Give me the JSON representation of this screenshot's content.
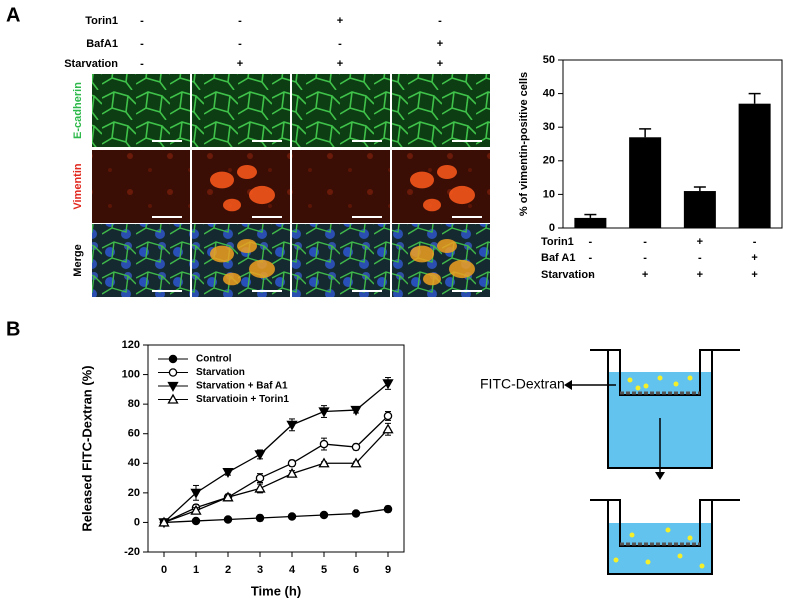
{
  "figure": {
    "panel_a_label": "A",
    "panel_b_label": "B"
  },
  "treatments": {
    "rows": [
      {
        "name": "Torin1",
        "values": [
          "-",
          "-",
          "+",
          "-"
        ]
      },
      {
        "name": "BafA1",
        "values": [
          "-",
          "-",
          "-",
          "+"
        ]
      },
      {
        "name": "Starvation",
        "values": [
          "-",
          "+",
          "+",
          "+"
        ]
      }
    ]
  },
  "images": {
    "rows": [
      "E-cadherin",
      "Vimentin",
      "Merge"
    ]
  },
  "chart_data": [
    {
      "type": "bar",
      "ylabel": "% of vimentin-positive cells",
      "color": "#000000",
      "values": [
        3,
        27,
        11,
        37
      ],
      "errors": [
        1,
        2.5,
        1.2,
        3
      ],
      "ylim": [
        0,
        50
      ],
      "yticks": [
        0,
        10,
        20,
        30,
        40,
        50
      ],
      "conditions": [
        {
          "name": "Torin1",
          "values": [
            "-",
            "-",
            "+",
            "-"
          ]
        },
        {
          "name": "Baf A1",
          "values": [
            "-",
            "-",
            "-",
            "+"
          ]
        },
        {
          "name": "Starvation",
          "values": [
            "-",
            "+",
            "+",
            "+"
          ]
        }
      ]
    },
    {
      "type": "line",
      "xlabel": "Time (h)",
      "ylabel": "Released FITC-Dextran (%)",
      "categories": [
        "0",
        "1",
        "2",
        "3",
        "4",
        "5",
        "6",
        "9"
      ],
      "ylim": [
        -20,
        120
      ],
      "yticks": [
        -20,
        0,
        20,
        40,
        60,
        80,
        100,
        120
      ],
      "legend": "top-left",
      "series": [
        {
          "name": "Control",
          "color": "#000000",
          "marker": "filled-circle",
          "values": [
            0,
            1,
            2,
            3,
            4,
            5,
            6,
            9
          ],
          "errors": [
            0.5,
            1,
            1,
            2,
            1,
            1,
            1,
            2
          ]
        },
        {
          "name": "Starvation",
          "color": "#000000",
          "marker": "open-circle",
          "values": [
            0,
            10,
            17,
            30,
            40,
            53,
            51,
            72
          ],
          "errors": [
            0.5,
            2,
            2,
            3,
            2,
            4,
            2,
            3
          ]
        },
        {
          "name": "Starvation + Baf A1",
          "color": "#000000",
          "marker": "filled-triangle-down",
          "values": [
            0,
            20,
            34,
            46,
            66,
            75,
            76,
            94
          ],
          "errors": [
            0.5,
            5,
            2,
            3,
            4,
            4,
            2,
            4
          ]
        },
        {
          "name": "Starvatioin + Torin1",
          "color": "#000000",
          "marker": "open-triangle-up",
          "values": [
            0,
            8,
            17,
            23,
            33,
            40,
            40,
            63
          ],
          "errors": [
            0.5,
            2,
            2,
            3,
            2,
            1,
            1,
            4
          ]
        }
      ]
    }
  ],
  "diagram": {
    "label": "FITC-Dextran"
  }
}
